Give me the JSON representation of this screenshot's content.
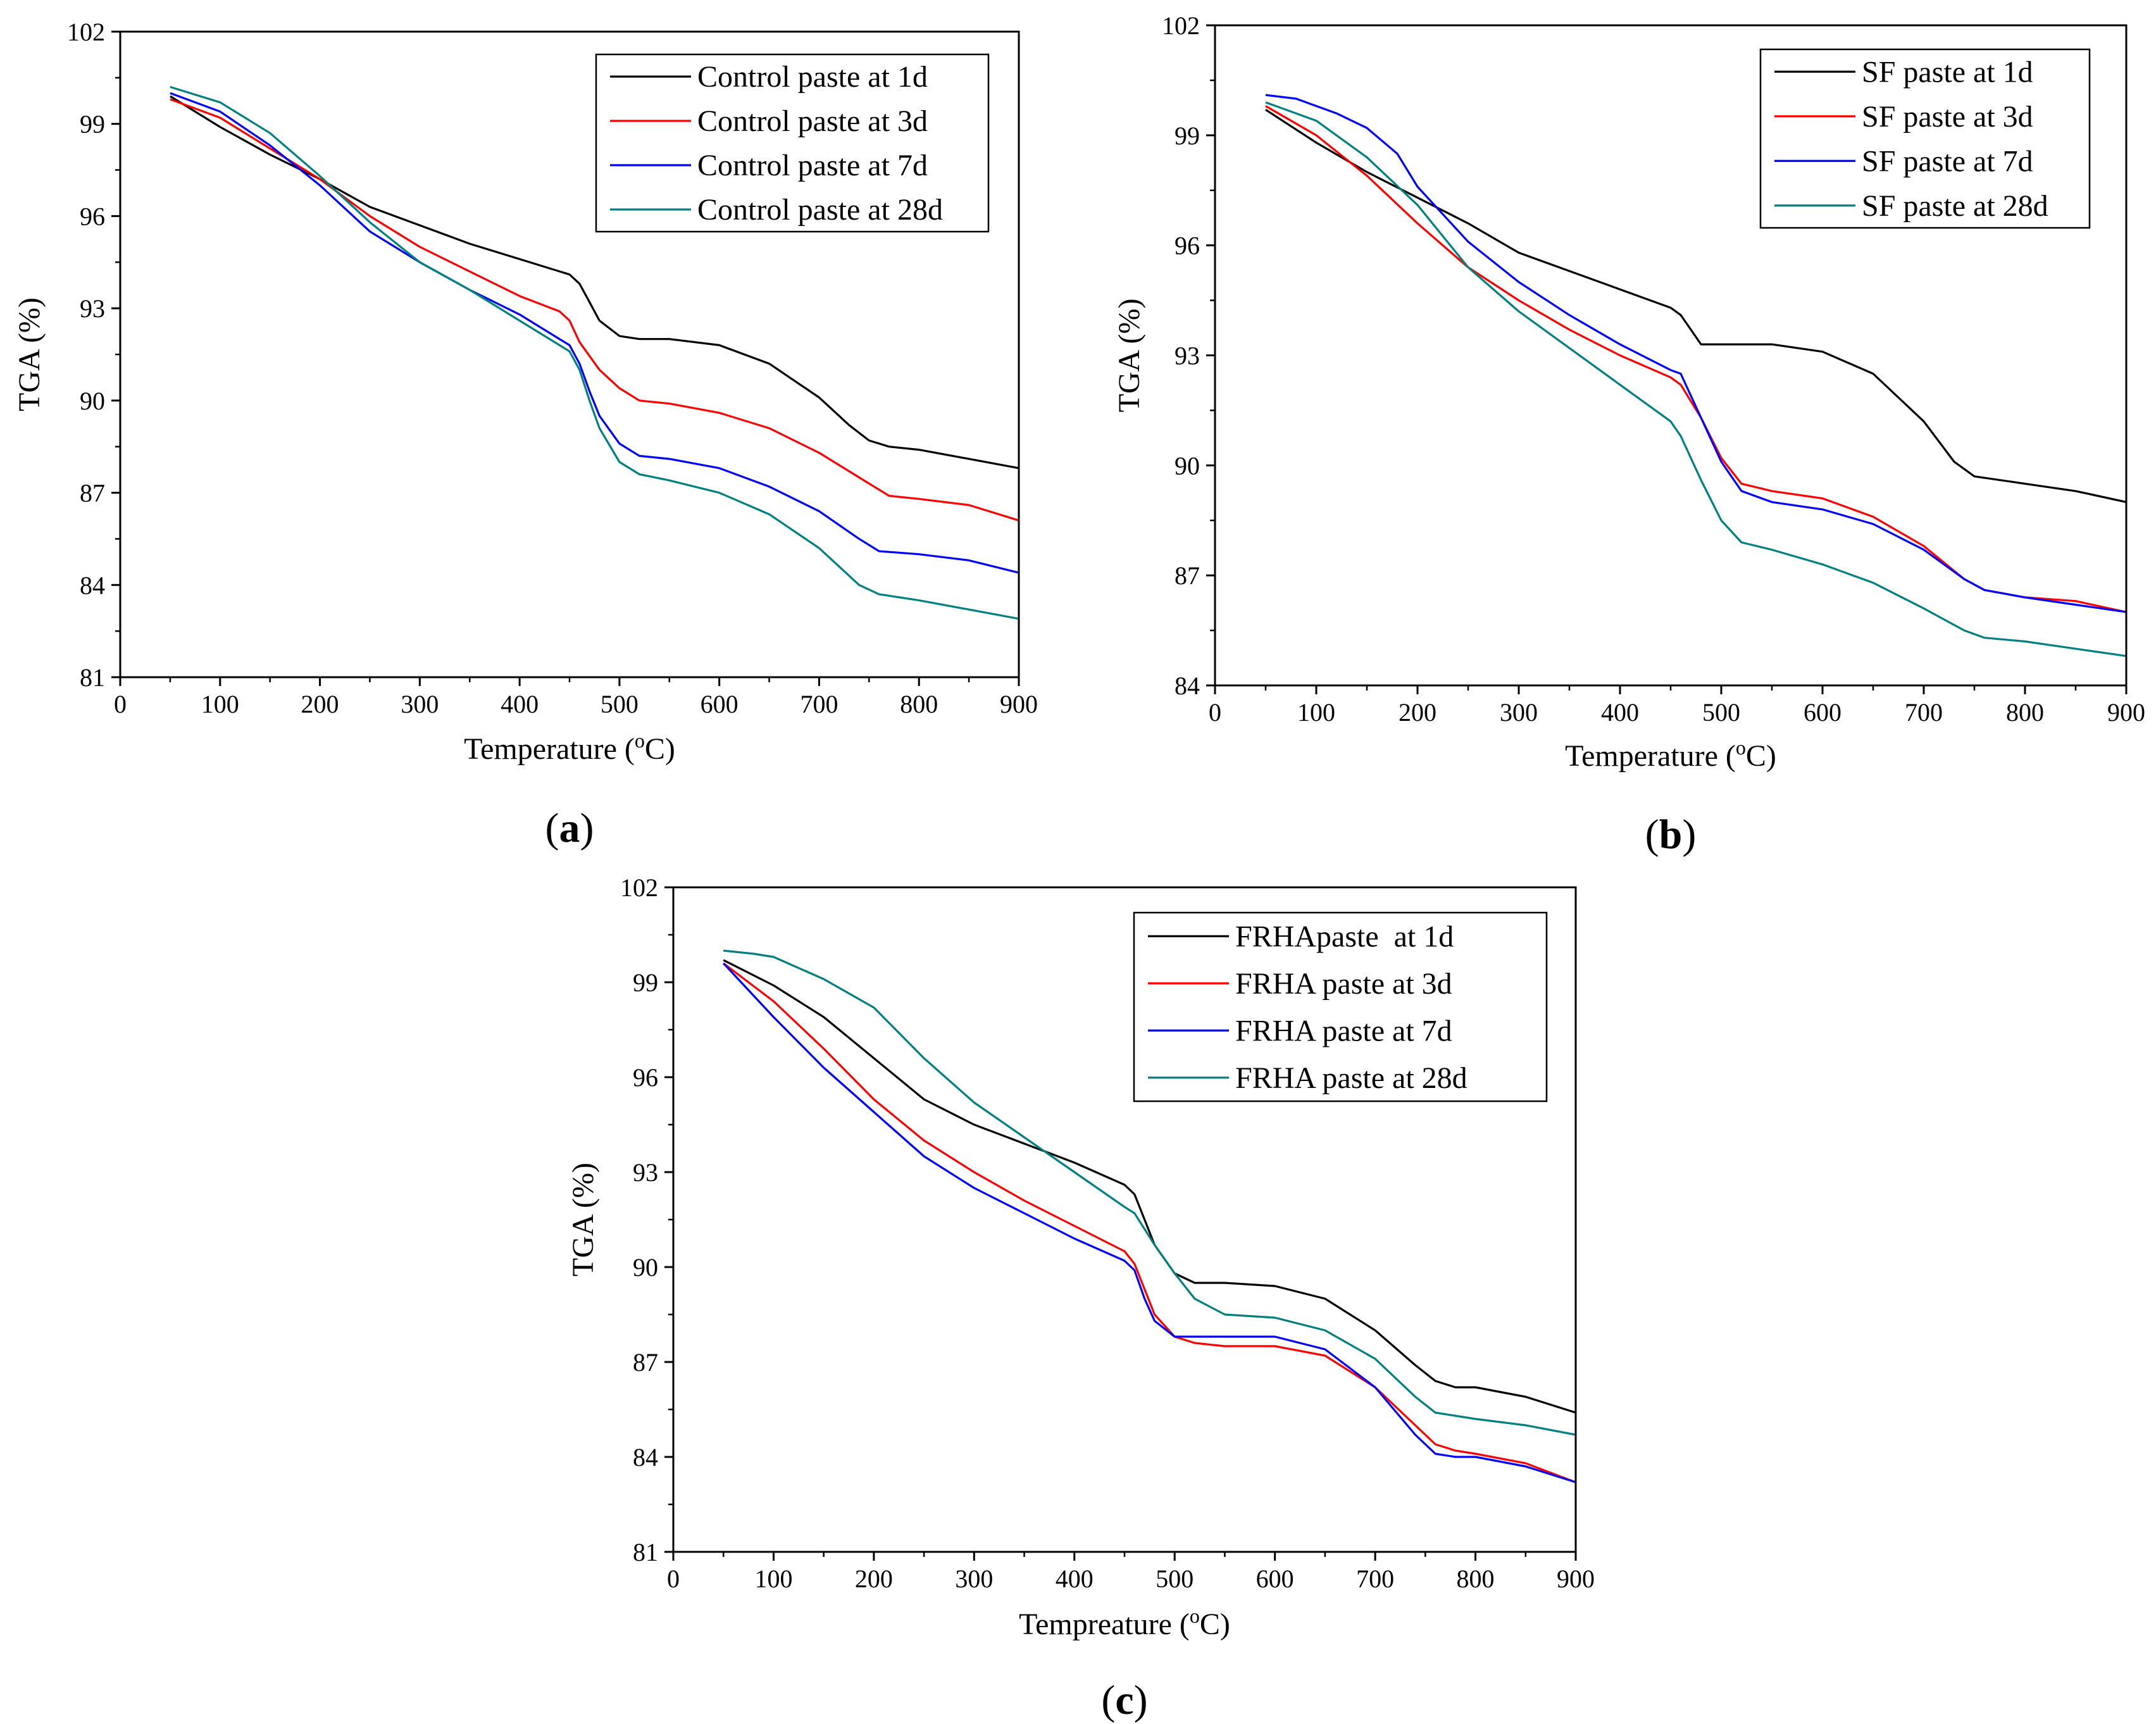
{
  "figure": {
    "panels": [
      {
        "label_open": "(",
        "label_letter": "a",
        "label_close": ")"
      },
      {
        "label_open": "(",
        "label_letter": "b",
        "label_close": ")"
      },
      {
        "label_open": "(",
        "label_letter": "c",
        "label_close": ")"
      }
    ]
  },
  "colors": {
    "d1": "#000000",
    "d3": "#ff0000",
    "d7": "#0000ff",
    "d28": "#008080"
  },
  "chart_data": [
    {
      "type": "line",
      "panel": "a",
      "xlabel": "Temperature (",
      "xlabel_sup": "o",
      "xlabel_unit": "C)",
      "ylabel": "TGA (%)",
      "xlim": [
        0,
        900
      ],
      "ylim": [
        81,
        102
      ],
      "xticks": [
        0,
        100,
        200,
        300,
        400,
        500,
        600,
        700,
        800,
        900
      ],
      "yticks": [
        81,
        84,
        87,
        90,
        93,
        96,
        99,
        102
      ],
      "legend_position": "top-right",
      "series": [
        {
          "name": "Control paste at 1d",
          "color_key": "d1",
          "x": [
            50,
            100,
            150,
            200,
            250,
            300,
            350,
            400,
            450,
            460,
            470,
            480,
            500,
            520,
            550,
            600,
            650,
            700,
            730,
            750,
            770,
            800,
            850,
            900
          ],
          "y": [
            99.9,
            98.9,
            98.0,
            97.2,
            96.3,
            95.7,
            95.1,
            94.6,
            94.1,
            93.8,
            93.2,
            92.6,
            92.1,
            92.0,
            92.0,
            91.8,
            91.2,
            90.1,
            89.2,
            88.7,
            88.5,
            88.4,
            88.1,
            87.8
          ]
        },
        {
          "name": "Control paste at 3d",
          "color_key": "d3",
          "x": [
            50,
            100,
            150,
            200,
            250,
            300,
            350,
            400,
            440,
            450,
            460,
            480,
            500,
            520,
            550,
            600,
            650,
            700,
            750,
            770,
            800,
            850,
            900
          ],
          "y": [
            99.8,
            99.2,
            98.2,
            97.2,
            96.0,
            95.0,
            94.2,
            93.4,
            92.9,
            92.6,
            91.9,
            91.0,
            90.4,
            90.0,
            89.9,
            89.6,
            89.1,
            88.3,
            87.3,
            86.9,
            86.8,
            86.6,
            86.1
          ]
        },
        {
          "name": "Control paste at 7d",
          "color_key": "d7",
          "x": [
            50,
            100,
            150,
            200,
            250,
            300,
            350,
            400,
            440,
            450,
            460,
            470,
            480,
            500,
            520,
            550,
            600,
            650,
            700,
            740,
            760,
            800,
            850,
            900
          ],
          "y": [
            100.0,
            99.4,
            98.3,
            97.0,
            95.5,
            94.5,
            93.6,
            92.8,
            92.0,
            91.8,
            91.2,
            90.3,
            89.5,
            88.6,
            88.2,
            88.1,
            87.8,
            87.2,
            86.4,
            85.5,
            85.1,
            85.0,
            84.8,
            84.4
          ]
        },
        {
          "name": "Control paste at 28d",
          "color_key": "d28",
          "x": [
            50,
            100,
            150,
            200,
            250,
            300,
            350,
            400,
            440,
            450,
            460,
            470,
            480,
            500,
            520,
            550,
            600,
            650,
            700,
            740,
            760,
            800,
            850,
            900
          ],
          "y": [
            100.2,
            99.7,
            98.7,
            97.3,
            95.8,
            94.5,
            93.6,
            92.6,
            91.8,
            91.6,
            91.0,
            90.0,
            89.1,
            88.0,
            87.6,
            87.4,
            87.0,
            86.3,
            85.2,
            84.0,
            83.7,
            83.5,
            83.2,
            82.9
          ]
        }
      ]
    },
    {
      "type": "line",
      "panel": "b",
      "xlabel": "Temperature (",
      "xlabel_sup": "o",
      "xlabel_unit": "C)",
      "ylabel": "TGA (%)",
      "xlim": [
        0,
        900
      ],
      "ylim": [
        84,
        102
      ],
      "xticks": [
        0,
        100,
        200,
        300,
        400,
        500,
        600,
        700,
        800,
        900
      ],
      "yticks": [
        84,
        87,
        90,
        93,
        96,
        99,
        102
      ],
      "legend_position": "top-right",
      "series": [
        {
          "name": "SF paste at 1d",
          "color_key": "d1",
          "x": [
            50,
            100,
            150,
            200,
            250,
            300,
            350,
            400,
            450,
            460,
            470,
            480,
            500,
            550,
            600,
            650,
            700,
            730,
            750,
            800,
            850,
            900
          ],
          "y": [
            99.7,
            98.8,
            98.0,
            97.3,
            96.6,
            95.8,
            95.3,
            94.8,
            94.3,
            94.1,
            93.7,
            93.3,
            93.3,
            93.3,
            93.1,
            92.5,
            91.2,
            90.1,
            89.7,
            89.5,
            89.3,
            89.0
          ]
        },
        {
          "name": "SF paste at 3d",
          "color_key": "d3",
          "x": [
            50,
            100,
            150,
            200,
            250,
            300,
            350,
            400,
            450,
            460,
            480,
            500,
            520,
            550,
            600,
            650,
            700,
            740,
            760,
            800,
            850,
            900
          ],
          "y": [
            99.8,
            99.0,
            97.9,
            96.6,
            95.4,
            94.5,
            93.7,
            93.0,
            92.4,
            92.2,
            91.3,
            90.2,
            89.5,
            89.3,
            89.1,
            88.6,
            87.8,
            86.9,
            86.6,
            86.4,
            86.3,
            86.0
          ]
        },
        {
          "name": "SF paste at 7d",
          "color_key": "d7",
          "x": [
            50,
            80,
            120,
            150,
            180,
            200,
            250,
            300,
            350,
            400,
            450,
            460,
            480,
            500,
            520,
            550,
            600,
            650,
            700,
            740,
            760,
            800,
            850,
            900
          ],
          "y": [
            100.1,
            100.0,
            99.6,
            99.2,
            98.5,
            97.6,
            96.1,
            95.0,
            94.1,
            93.3,
            92.6,
            92.5,
            91.3,
            90.1,
            89.3,
            89.0,
            88.8,
            88.4,
            87.7,
            86.9,
            86.6,
            86.4,
            86.2,
            86.0
          ]
        },
        {
          "name": "SF paste at 28d",
          "color_key": "d28",
          "x": [
            50,
            100,
            150,
            200,
            250,
            300,
            350,
            400,
            440,
            450,
            460,
            480,
            500,
            520,
            550,
            600,
            650,
            700,
            740,
            760,
            800,
            850,
            900
          ],
          "y": [
            99.9,
            99.4,
            98.4,
            97.1,
            95.4,
            94.2,
            93.2,
            92.2,
            91.4,
            91.2,
            90.8,
            89.6,
            88.5,
            87.9,
            87.7,
            87.3,
            86.8,
            86.1,
            85.5,
            85.3,
            85.2,
            85.0,
            84.8
          ]
        }
      ]
    },
    {
      "type": "line",
      "panel": "c",
      "xlabel": "Tempreature (",
      "xlabel_sup": "o",
      "xlabel_unit": "C)",
      "ylabel": "TGA (%)",
      "xlim": [
        0,
        900
      ],
      "ylim": [
        81,
        102
      ],
      "xticks": [
        0,
        100,
        200,
        300,
        400,
        500,
        600,
        700,
        800,
        900
      ],
      "yticks": [
        81,
        84,
        87,
        90,
        93,
        96,
        99,
        102
      ],
      "legend_position": "top-right",
      "series": [
        {
          "name": "FRHApaste  at 1d",
          "color_key": "d1",
          "x": [
            50,
            100,
            150,
            200,
            250,
            300,
            350,
            400,
            450,
            460,
            470,
            480,
            500,
            520,
            550,
            600,
            650,
            700,
            740,
            760,
            780,
            800,
            850,
            900
          ],
          "y": [
            99.7,
            98.9,
            97.9,
            96.6,
            95.3,
            94.5,
            93.9,
            93.3,
            92.6,
            92.3,
            91.5,
            90.7,
            89.8,
            89.5,
            89.5,
            89.4,
            89.0,
            88.0,
            86.9,
            86.4,
            86.2,
            86.2,
            85.9,
            85.4
          ]
        },
        {
          "name": "FRHA paste at 3d",
          "color_key": "d3",
          "x": [
            50,
            100,
            150,
            200,
            250,
            300,
            350,
            400,
            450,
            460,
            470,
            480,
            500,
            520,
            550,
            600,
            650,
            700,
            740,
            760,
            780,
            800,
            850,
            900
          ],
          "y": [
            99.6,
            98.4,
            96.9,
            95.3,
            94.0,
            93.0,
            92.1,
            91.3,
            90.5,
            90.1,
            89.3,
            88.5,
            87.8,
            87.6,
            87.5,
            87.5,
            87.2,
            86.2,
            85.0,
            84.4,
            84.2,
            84.1,
            83.8,
            83.2
          ]
        },
        {
          "name": "FRHA paste at 7d",
          "color_key": "d7",
          "x": [
            50,
            100,
            150,
            200,
            250,
            300,
            350,
            400,
            450,
            460,
            470,
            480,
            500,
            520,
            550,
            600,
            650,
            700,
            740,
            760,
            780,
            800,
            850,
            900
          ],
          "y": [
            99.6,
            97.9,
            96.3,
            94.9,
            93.5,
            92.5,
            91.7,
            90.9,
            90.2,
            89.9,
            89.0,
            88.3,
            87.8,
            87.8,
            87.8,
            87.8,
            87.4,
            86.2,
            84.7,
            84.1,
            84.0,
            84.0,
            83.7,
            83.2
          ]
        },
        {
          "name": "FRHA paste at 28d",
          "color_key": "d28",
          "x": [
            50,
            80,
            100,
            150,
            200,
            250,
            300,
            350,
            400,
            450,
            460,
            470,
            480,
            500,
            520,
            550,
            600,
            650,
            700,
            740,
            760,
            780,
            800,
            850,
            900
          ],
          "y": [
            100.0,
            99.9,
            99.8,
            99.1,
            98.2,
            96.6,
            95.2,
            94.1,
            93.0,
            91.9,
            91.7,
            91.2,
            90.7,
            89.8,
            89.0,
            88.5,
            88.4,
            88.0,
            87.1,
            85.9,
            85.4,
            85.3,
            85.2,
            85.0,
            84.7
          ]
        }
      ]
    }
  ]
}
